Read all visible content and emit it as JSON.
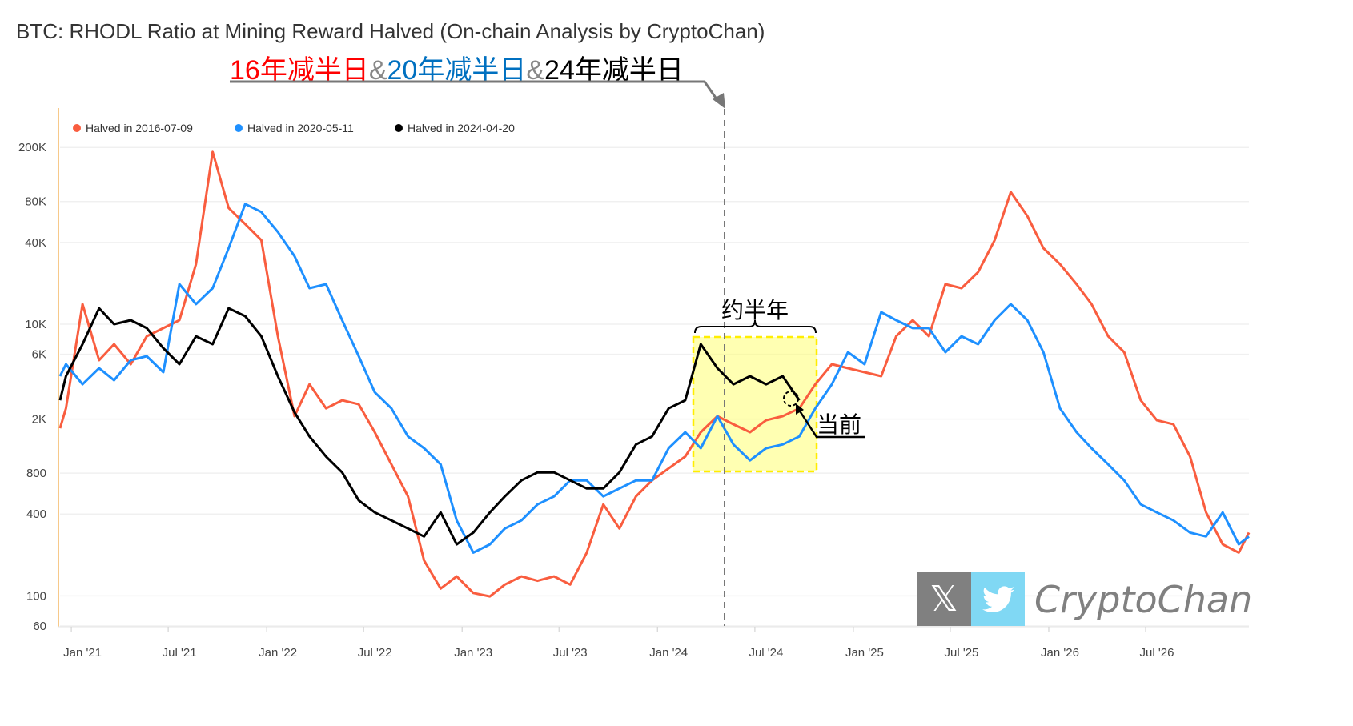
{
  "chart_data": {
    "type": "line",
    "title": "BTC: RHODL Ratio at Mining Reward Halved (On-chain Analysis by CryptoChan)",
    "subtitle_parts": [
      {
        "text": "16年减半日",
        "color": "#ff0000"
      },
      {
        "text": "&",
        "color": "#888888"
      },
      {
        "text": "20年减半日",
        "color": "#0070c0"
      },
      {
        "text": "&",
        "color": "#888888"
      },
      {
        "text": "24年减半日",
        "color": "#000000"
      }
    ],
    "y_scale": "log",
    "ylim": [
      60,
      390000
    ],
    "xlim": [
      "2020-11-20",
      "2026-12-20"
    ],
    "grid": true,
    "legend_position": "top-left",
    "y_ticks": [
      {
        "value": 200000,
        "label": "200K"
      },
      {
        "value": 80000,
        "label": "80K"
      },
      {
        "value": 40000,
        "label": "40K"
      },
      {
        "value": 10000,
        "label": "10K"
      },
      {
        "value": 6000,
        "label": "6K"
      },
      {
        "value": 2000,
        "label": "2K"
      },
      {
        "value": 800,
        "label": "800"
      },
      {
        "value": 400,
        "label": "400"
      },
      {
        "value": 100,
        "label": "100"
      },
      {
        "value": 60,
        "label": "60"
      }
    ],
    "x_ticks": [
      {
        "date": "2021-01-01",
        "label": "Jan '21"
      },
      {
        "date": "2021-07-01",
        "label": "Jul '21"
      },
      {
        "date": "2022-01-01",
        "label": "Jan '22"
      },
      {
        "date": "2022-07-01",
        "label": "Jul '22"
      },
      {
        "date": "2023-01-01",
        "label": "Jan '23"
      },
      {
        "date": "2023-07-01",
        "label": "Jul '23"
      },
      {
        "date": "2024-01-01",
        "label": "Jan '24"
      },
      {
        "date": "2024-07-01",
        "label": "Jul '24"
      },
      {
        "date": "2025-01-01",
        "label": "Jan '25"
      },
      {
        "date": "2025-07-01",
        "label": "Jul '25"
      },
      {
        "date": "2026-01-01",
        "label": "Jan '26"
      },
      {
        "date": "2026-07-01",
        "label": "Jul '26"
      }
    ],
    "series": [
      {
        "name": "Halved in 2016-07-09",
        "color": "#f95d3f",
        "points": [
          [
            "2020-11-20",
            1710
          ],
          [
            "2020-12-01",
            2400
          ],
          [
            "2021-01-01",
            14050
          ],
          [
            "2021-02-01",
            5430
          ],
          [
            "2021-03-01",
            7120
          ],
          [
            "2021-04-01",
            5070
          ],
          [
            "2021-05-01",
            8150
          ],
          [
            "2021-06-01",
            9350
          ],
          [
            "2021-07-01",
            10700
          ],
          [
            "2021-08-01",
            27700
          ],
          [
            "2021-09-01",
            185500
          ],
          [
            "2021-10-01",
            71700
          ],
          [
            "2021-11-01",
            54600
          ],
          [
            "2021-12-01",
            41600
          ],
          [
            "2022-01-01",
            8150
          ],
          [
            "2022-02-01",
            2100
          ],
          [
            "2022-03-01",
            3610
          ],
          [
            "2022-04-01",
            2400
          ],
          [
            "2022-05-01",
            2750
          ],
          [
            "2022-06-01",
            2570
          ],
          [
            "2022-07-01",
            1600
          ],
          [
            "2022-08-01",
            928
          ],
          [
            "2022-09-01",
            539
          ],
          [
            "2022-10-01",
            182
          ],
          [
            "2022-11-01",
            113
          ],
          [
            "2022-12-01",
            139
          ],
          [
            "2023-01-01",
            105
          ],
          [
            "2023-02-01",
            99
          ],
          [
            "2023-03-01",
            121
          ],
          [
            "2023-04-01",
            139
          ],
          [
            "2023-05-01",
            129
          ],
          [
            "2023-06-01",
            139
          ],
          [
            "2023-07-01",
            121
          ],
          [
            "2023-08-01",
            208
          ],
          [
            "2023-09-01",
            471
          ],
          [
            "2023-10-01",
            313
          ],
          [
            "2023-11-01",
            539
          ],
          [
            "2023-12-01",
            707
          ],
          [
            "2024-01-01",
            867
          ],
          [
            "2024-02-01",
            1060
          ],
          [
            "2024-03-01",
            1600
          ],
          [
            "2024-04-01",
            2100
          ],
          [
            "2024-05-01",
            1830
          ],
          [
            "2024-06-01",
            1600
          ],
          [
            "2024-07-01",
            1960
          ],
          [
            "2024-08-01",
            2100
          ],
          [
            "2024-09-01",
            2400
          ],
          [
            "2024-10-01",
            3610
          ],
          [
            "2024-11-01",
            5070
          ],
          [
            "2024-12-01",
            4740
          ],
          [
            "2025-01-01",
            4430
          ],
          [
            "2025-02-01",
            4140
          ],
          [
            "2025-03-01",
            8150
          ],
          [
            "2025-04-01",
            10700
          ],
          [
            "2025-05-01",
            8150
          ],
          [
            "2025-06-01",
            19700
          ],
          [
            "2025-07-01",
            18400
          ],
          [
            "2025-08-01",
            24200
          ],
          [
            "2025-09-01",
            41600
          ],
          [
            "2025-10-01",
            94000
          ],
          [
            "2025-11-01",
            62600
          ],
          [
            "2025-12-01",
            36300
          ],
          [
            "2026-01-01",
            27700
          ],
          [
            "2026-02-01",
            19700
          ],
          [
            "2026-03-01",
            14050
          ],
          [
            "2026-04-01",
            8150
          ],
          [
            "2026-05-01",
            6220
          ],
          [
            "2026-06-01",
            2750
          ],
          [
            "2026-07-01",
            1960
          ],
          [
            "2026-08-01",
            1830
          ],
          [
            "2026-09-01",
            1060
          ],
          [
            "2026-10-01",
            411
          ],
          [
            "2026-11-01",
            239
          ],
          [
            "2026-12-01",
            208
          ],
          [
            "2026-12-20",
            292
          ]
        ]
      },
      {
        "name": "Halved in 2020-05-11",
        "color": "#1e90ff",
        "points": [
          [
            "2020-11-20",
            4140
          ],
          [
            "2020-12-01",
            5070
          ],
          [
            "2021-01-01",
            3610
          ],
          [
            "2021-02-01",
            4740
          ],
          [
            "2021-03-01",
            3860
          ],
          [
            "2021-04-01",
            5430
          ],
          [
            "2021-05-01",
            5810
          ],
          [
            "2021-06-01",
            4430
          ],
          [
            "2021-07-01",
            19700
          ],
          [
            "2021-08-01",
            14050
          ],
          [
            "2021-09-01",
            18400
          ],
          [
            "2021-10-01",
            36300
          ],
          [
            "2021-11-01",
            76700
          ],
          [
            "2021-12-01",
            67000
          ],
          [
            "2022-01-01",
            47700
          ],
          [
            "2022-02-01",
            31700
          ],
          [
            "2022-03-01",
            18400
          ],
          [
            "2022-04-01",
            19700
          ],
          [
            "2022-05-01",
            10700
          ],
          [
            "2022-06-01",
            5810
          ],
          [
            "2022-07-01",
            3150
          ],
          [
            "2022-08-01",
            2400
          ],
          [
            "2022-09-01",
            1490
          ],
          [
            "2022-10-01",
            1220
          ],
          [
            "2022-11-01",
            928
          ],
          [
            "2022-12-01",
            359
          ],
          [
            "2023-01-01",
            208
          ],
          [
            "2023-02-01",
            239
          ],
          [
            "2023-03-01",
            313
          ],
          [
            "2023-04-01",
            359
          ],
          [
            "2023-05-01",
            471
          ],
          [
            "2023-06-01",
            539
          ],
          [
            "2023-07-01",
            707
          ],
          [
            "2023-08-01",
            707
          ],
          [
            "2023-09-01",
            539
          ],
          [
            "2023-10-01",
            617
          ],
          [
            "2023-11-01",
            707
          ],
          [
            "2023-12-01",
            707
          ],
          [
            "2024-01-01",
            1220
          ],
          [
            "2024-02-01",
            1600
          ],
          [
            "2024-03-01",
            1220
          ],
          [
            "2024-04-01",
            2100
          ],
          [
            "2024-05-01",
            1300
          ],
          [
            "2024-06-01",
            993
          ],
          [
            "2024-07-01",
            1220
          ],
          [
            "2024-08-01",
            1300
          ],
          [
            "2024-09-01",
            1490
          ],
          [
            "2024-10-01",
            2400
          ],
          [
            "2024-11-01",
            3610
          ],
          [
            "2024-12-01",
            6220
          ],
          [
            "2025-01-01",
            5070
          ],
          [
            "2025-02-01",
            12250
          ],
          [
            "2025-03-01",
            10700
          ],
          [
            "2025-04-01",
            9350
          ],
          [
            "2025-05-01",
            9350
          ],
          [
            "2025-06-01",
            6220
          ],
          [
            "2025-07-01",
            8150
          ],
          [
            "2025-08-01",
            7120
          ],
          [
            "2025-09-01",
            10700
          ],
          [
            "2025-10-01",
            14050
          ],
          [
            "2025-11-01",
            10700
          ],
          [
            "2025-12-01",
            6220
          ],
          [
            "2026-01-01",
            2400
          ],
          [
            "2026-02-01",
            1600
          ],
          [
            "2026-03-01",
            1220
          ],
          [
            "2026-04-01",
            928
          ],
          [
            "2026-05-01",
            707
          ],
          [
            "2026-06-01",
            471
          ],
          [
            "2026-07-01",
            411
          ],
          [
            "2026-08-01",
            359
          ],
          [
            "2026-09-01",
            292
          ],
          [
            "2026-10-01",
            273
          ],
          [
            "2026-11-01",
            411
          ],
          [
            "2026-12-01",
            239
          ],
          [
            "2026-12-20",
            273
          ]
        ]
      },
      {
        "name": "Halved in 2024-04-20",
        "color": "#000000",
        "points": [
          [
            "2020-11-20",
            2750
          ],
          [
            "2020-12-01",
            4140
          ],
          [
            "2021-01-01",
            7120
          ],
          [
            "2021-02-01",
            13100
          ],
          [
            "2021-03-01",
            10000
          ],
          [
            "2021-04-01",
            10700
          ],
          [
            "2021-05-01",
            9350
          ],
          [
            "2021-06-01",
            6650
          ],
          [
            "2021-07-01",
            5070
          ],
          [
            "2021-08-01",
            8150
          ],
          [
            "2021-09-01",
            7120
          ],
          [
            "2021-10-01",
            13100
          ],
          [
            "2021-11-01",
            11450
          ],
          [
            "2021-12-01",
            8150
          ],
          [
            "2022-01-01",
            4140
          ],
          [
            "2022-02-01",
            2240
          ],
          [
            "2022-03-01",
            1490
          ],
          [
            "2022-04-01",
            1060
          ],
          [
            "2022-05-01",
            810
          ],
          [
            "2022-06-01",
            504
          ],
          [
            "2022-07-01",
            411
          ],
          [
            "2022-08-01",
            359
          ],
          [
            "2022-09-01",
            313
          ],
          [
            "2022-10-01",
            273
          ],
          [
            "2022-11-01",
            411
          ],
          [
            "2022-12-01",
            239
          ],
          [
            "2023-01-01",
            292
          ],
          [
            "2023-02-01",
            411
          ],
          [
            "2023-03-01",
            539
          ],
          [
            "2023-04-01",
            707
          ],
          [
            "2023-05-01",
            810
          ],
          [
            "2023-06-01",
            810
          ],
          [
            "2023-07-01",
            707
          ],
          [
            "2023-08-01",
            617
          ],
          [
            "2023-09-01",
            617
          ],
          [
            "2023-10-01",
            810
          ],
          [
            "2023-11-01",
            1300
          ],
          [
            "2023-12-01",
            1490
          ],
          [
            "2024-01-01",
            2400
          ],
          [
            "2024-02-01",
            2750
          ],
          [
            "2024-03-01",
            7120
          ],
          [
            "2024-04-01",
            4740
          ],
          [
            "2024-05-01",
            3610
          ],
          [
            "2024-06-01",
            4140
          ],
          [
            "2024-07-01",
            3610
          ],
          [
            "2024-08-01",
            4140
          ],
          [
            "2024-09-01",
            2750
          ]
        ]
      }
    ],
    "annotations": {
      "half_year_label": "约半年",
      "current_label": "当前"
    }
  },
  "watermark": {
    "x_logo": "𝕏",
    "name": "CryptoChan"
  }
}
